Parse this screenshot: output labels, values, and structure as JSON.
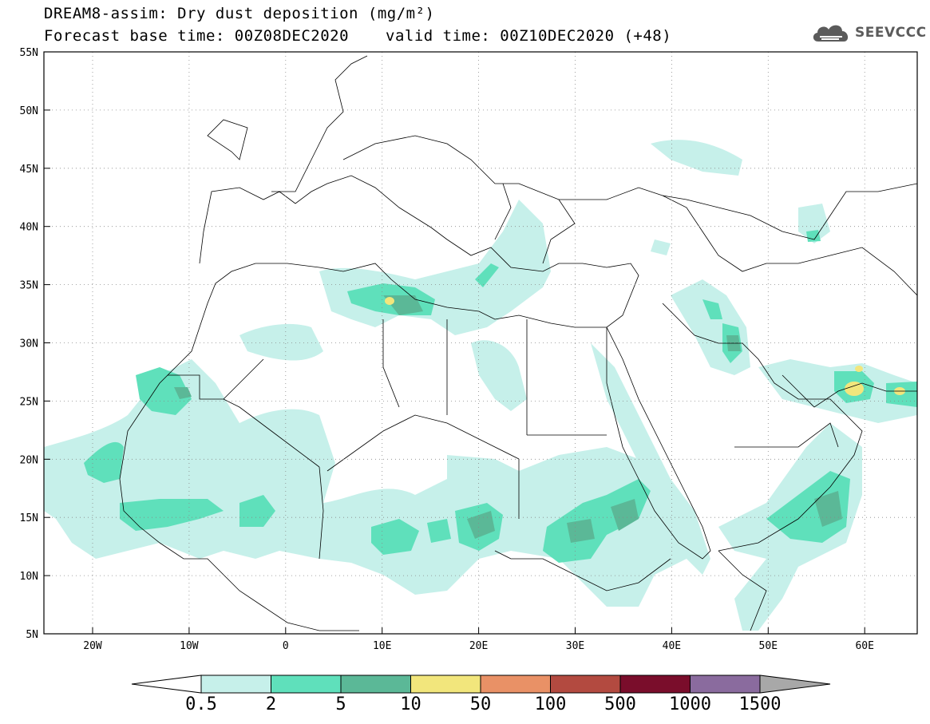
{
  "title": {
    "line1": "DREAM8-assim: Dry dust deposition (mg/m²)",
    "line2": "Forecast base time: 00Z08DEC2020",
    "valid": "valid time: 00Z10DEC2020 (+48)"
  },
  "logo": {
    "text": "SEEVCCC",
    "icon": "cloud-icon"
  },
  "axes": {
    "lon_labels": [
      "20W",
      "10W",
      "0",
      "10E",
      "20E",
      "30E",
      "40E",
      "50E",
      "60E"
    ],
    "lat_labels": [
      "55N",
      "50N",
      "45N",
      "40N",
      "35N",
      "30N",
      "25N",
      "20N",
      "15N",
      "10N",
      "5N"
    ]
  },
  "colorbar": {
    "labels": [
      "0.5",
      "2",
      "5",
      "10",
      "50",
      "100",
      "500",
      "1000",
      "1500"
    ],
    "colors": [
      "#c6f0ea",
      "#5fe0bb",
      "#5bb897",
      "#f2e67c",
      "#e99166",
      "#b34a40",
      "#7a0d2b",
      "#8a6b9e",
      "#a8a8a8"
    ]
  }
}
